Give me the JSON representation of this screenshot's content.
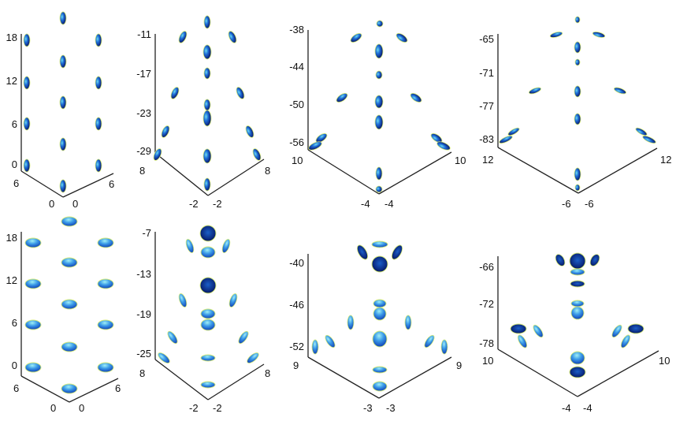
{
  "colors": {
    "background": "#ffffff",
    "axis": "#222222",
    "ellipsoid_dark": "#0b1f73",
    "ellipsoid_mid": "#1f6fd8",
    "ellipsoid_light": "#7fe3f0",
    "ellipsoid_rim": "#d8ec7a"
  },
  "panels": [
    {
      "id": "r1c1",
      "z_ticks": [
        "18",
        "12",
        "6",
        "0"
      ],
      "left_base": [
        "6",
        "0"
      ],
      "right_base": [
        "0",
        "6"
      ]
    },
    {
      "id": "r1c2",
      "z_ticks": [
        "-11",
        "-17",
        "-23",
        "-29"
      ],
      "left_base": [
        "8",
        "-2"
      ],
      "right_base": [
        "-2",
        "8"
      ]
    },
    {
      "id": "r1c3",
      "z_ticks": [
        "-38",
        "-44",
        "-50",
        "-56"
      ],
      "left_base": [
        "10",
        "-4"
      ],
      "right_base": [
        "-4",
        "10"
      ]
    },
    {
      "id": "r1c4",
      "z_ticks": [
        "-65",
        "-71",
        "-77",
        "-83"
      ],
      "left_base": [
        "12",
        "-6"
      ],
      "right_base": [
        "-6",
        "12"
      ]
    },
    {
      "id": "r2c1",
      "z_ticks": [
        "18",
        "12",
        "6",
        "0"
      ],
      "left_base": [
        "6",
        "0"
      ],
      "right_base": [
        "0",
        "6"
      ]
    },
    {
      "id": "r2c2",
      "z_ticks": [
        "-7",
        "-13",
        "-19",
        "-25"
      ],
      "left_base": [
        "8",
        "-2"
      ],
      "right_base": [
        "-2",
        "8"
      ]
    },
    {
      "id": "r2c3",
      "z_ticks": [
        "-40",
        "-46",
        "-52"
      ],
      "left_base": [
        "9",
        "-3"
      ],
      "right_base": [
        "-3",
        "9"
      ]
    },
    {
      "id": "r2c4",
      "z_ticks": [
        "-66",
        "-72",
        "-78"
      ],
      "left_base": [
        "10",
        "-4"
      ],
      "right_base": [
        "-4",
        "10"
      ]
    }
  ]
}
